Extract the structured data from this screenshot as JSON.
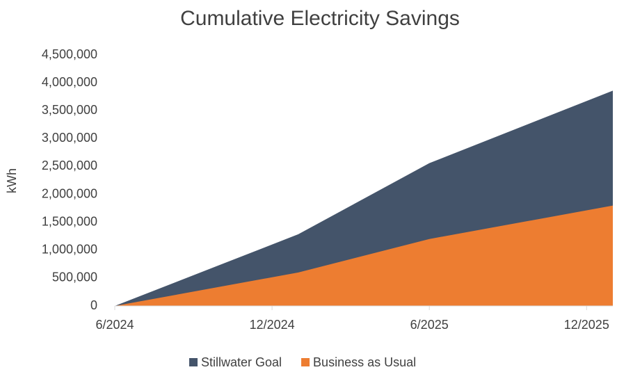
{
  "chart_data": {
    "type": "area",
    "title": "Cumulative Electricity Savings",
    "y_label": "kWh",
    "x": [
      "2024-06",
      "2025-01",
      "2025-06",
      "2026-01"
    ],
    "xlim": [
      "2024-06",
      "2026-01"
    ],
    "xticks": [
      {
        "value": "2024-06",
        "label": "6/2024"
      },
      {
        "value": "2024-12",
        "label": "12/2024"
      },
      {
        "value": "2025-06",
        "label": "6/2025"
      },
      {
        "value": "2025-12",
        "label": "12/2025"
      }
    ],
    "series": [
      {
        "name": "Stillwater Goal",
        "color": "#44546a",
        "values": [
          0,
          1285000,
          2560000,
          3860000
        ]
      },
      {
        "name": "Business as Usual",
        "color": "#ed7d31",
        "values": [
          0,
          600000,
          1200000,
          1800000
        ]
      }
    ],
    "ylim": [
      0,
      4500000
    ],
    "yticks": [
      0,
      {
        "value": 500000,
        "label": "500,000"
      },
      {
        "value": 1000000,
        "label": "1,000,000"
      },
      {
        "value": 1500000,
        "label": "1,500,000"
      },
      {
        "value": 2000000,
        "label": "2,000,000"
      },
      {
        "value": 2500000,
        "label": "2,500,000"
      },
      {
        "value": 3000000,
        "label": "3,000,000"
      },
      {
        "value": 3500000,
        "label": "3,500,000"
      },
      {
        "value": 4000000,
        "label": "4,000,000"
      },
      {
        "value": 4500000,
        "label": "4,500,000"
      }
    ],
    "grid": false
  }
}
